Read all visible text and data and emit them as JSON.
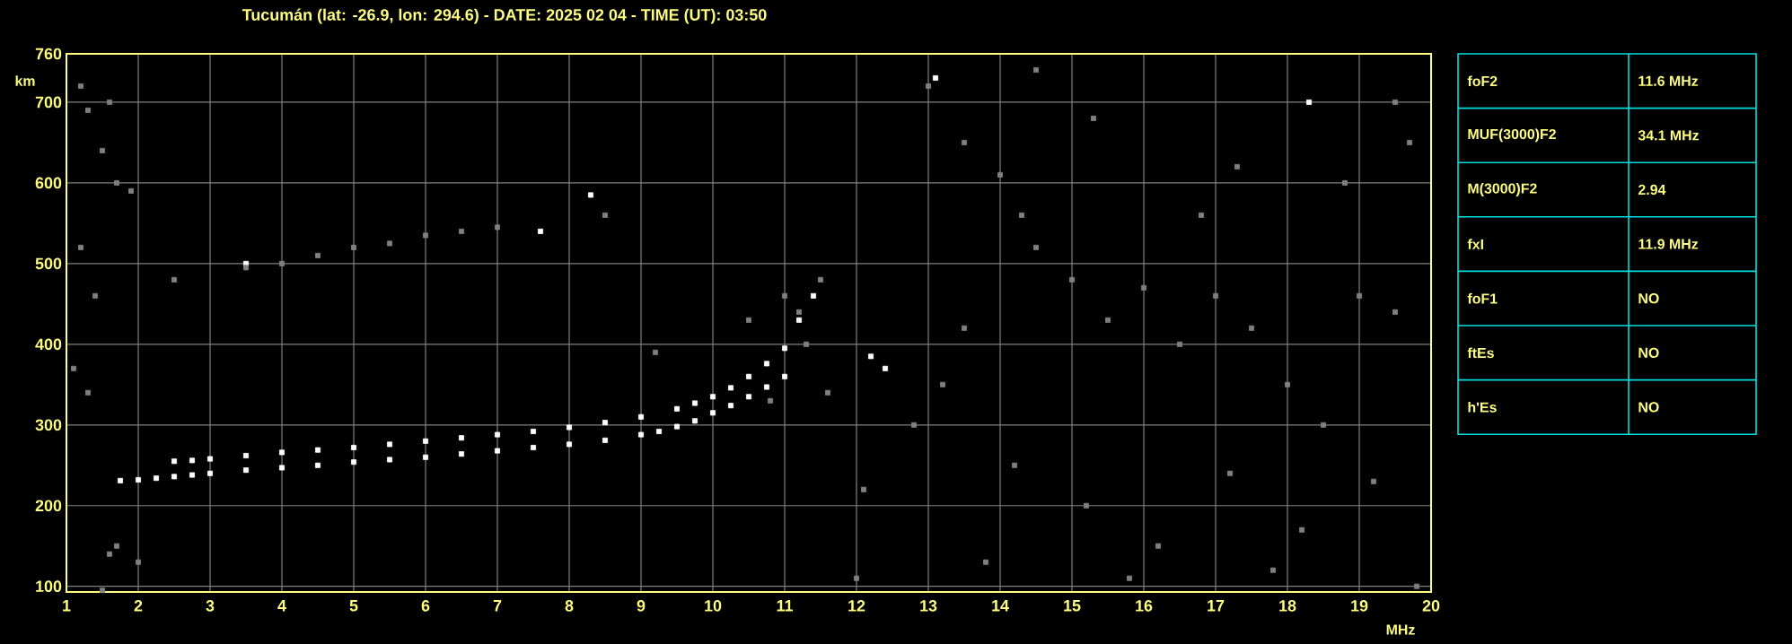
{
  "chart_data": {
    "type": "scatter",
    "title": "Tucumán (lat: -26.9, lon: 294.6) - DATE: 2025 02 04 - TIME (UT): 03:50",
    "xlabel": "MHz",
    "ylabel": "km",
    "xlim": [
      1,
      20
    ],
    "ylim": [
      93,
      760
    ],
    "xticks": [
      1,
      2,
      3,
      4,
      5,
      6,
      7,
      8,
      9,
      10,
      11,
      12,
      13,
      14,
      15,
      16,
      17,
      18,
      19,
      20
    ],
    "yticks": [
      100,
      200,
      300,
      400,
      500,
      600,
      700,
      760
    ],
    "grid": true,
    "marker": "square",
    "series": [
      {
        "color": "#ffffff",
        "x": [
          1.75,
          2,
          2.25,
          2.5,
          2.75,
          3,
          3.5,
          4,
          4.5,
          5,
          5.5,
          6,
          6.5,
          7,
          7.5,
          8,
          8.5,
          9,
          9.25,
          9.5,
          9.75,
          10,
          10.25,
          10.5,
          10.75,
          11,
          2.5,
          2.75,
          3,
          3.5,
          4,
          4.5,
          5,
          5.5,
          6,
          6.5,
          7,
          7.5,
          8,
          8.5,
          9,
          9.5,
          9.75,
          10,
          10.25,
          10.5,
          10.75,
          11,
          11.2,
          11.4,
          12.2,
          12.4,
          3.5,
          7.6,
          8.3,
          13.1,
          18.3
        ],
        "values": [
          231,
          232,
          234,
          236,
          238,
          240,
          244,
          247,
          250,
          254,
          257,
          260,
          264,
          268,
          272,
          276,
          281,
          288,
          292,
          298,
          305,
          315,
          324,
          335,
          347,
          360,
          255,
          256,
          258,
          262,
          266,
          269,
          272,
          276,
          280,
          284,
          288,
          292,
          297,
          303,
          310,
          320,
          327,
          335,
          346,
          360,
          376,
          395,
          430,
          460,
          385,
          370,
          500,
          540,
          585,
          730,
          700
        ]
      },
      {
        "color": "#808080",
        "x": [
          1.2,
          1.3,
          1.5,
          1.7,
          1.9,
          1.2,
          1.4,
          1.6,
          1.1,
          1.3,
          1.6,
          1.7,
          1.5,
          2.0,
          2.5,
          3.5,
          4,
          4.5,
          5,
          5.5,
          6,
          6.5,
          7,
          8.5,
          11.5,
          11.2,
          12.1,
          12.0,
          13,
          13.5,
          14,
          14.3,
          14.5,
          15,
          15.5,
          16,
          16.5,
          17,
          17.5,
          18,
          18.5,
          19,
          19.5,
          13.2,
          14.2,
          15.2,
          16.2,
          17.2,
          18.2,
          19.2,
          13.8,
          15.8,
          17.8,
          19.8,
          19.5,
          12.8,
          13.5,
          16.8,
          15.3,
          17.3,
          14.5,
          18.8,
          19.7,
          10.5,
          11.0,
          11.3,
          10.8,
          11.6,
          9.2
        ],
        "values": [
          720,
          690,
          640,
          600,
          590,
          520,
          460,
          700,
          370,
          340,
          140,
          150,
          95,
          130,
          480,
          495,
          500,
          510,
          520,
          525,
          535,
          540,
          545,
          560,
          480,
          440,
          220,
          110,
          720,
          650,
          610,
          560,
          520,
          480,
          430,
          470,
          400,
          460,
          420,
          350,
          300,
          460,
          440,
          350,
          250,
          200,
          150,
          240,
          170,
          230,
          130,
          110,
          120,
          100,
          700,
          300,
          420,
          560,
          680,
          620,
          740,
          600,
          650,
          430,
          460,
          400,
          330,
          340,
          390
        ]
      }
    ],
    "annotations": [
      "foF2",
      "11.6 MHz",
      "MUF(3000)F2",
      "34.1 MHz",
      "M(3000)F2",
      "2.94",
      "fxI",
      "11.9 MHz",
      "foF1",
      "NO",
      "ftEs",
      "NO",
      "h'Es",
      "NO"
    ]
  }
}
